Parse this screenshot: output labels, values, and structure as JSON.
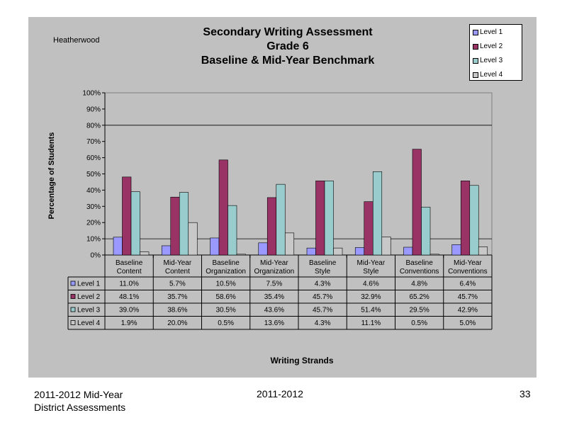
{
  "page": {
    "school": "Heatherwood",
    "title_lines": [
      "Secondary Writing Assessment",
      "Grade 6",
      "Baseline & Mid-Year Benchmark"
    ],
    "footer_left_line1": "2011-2012  Mid-Year",
    "footer_left_line2": "District Assessments",
    "footer_center": "2011-2012",
    "page_number": "33"
  },
  "chart_data": {
    "type": "bar",
    "ylabel": "Percentage of Students",
    "xlabel": "Writing Strands",
    "ylim": [
      0,
      100
    ],
    "yticks": [
      "0%",
      "10%",
      "20%",
      "30%",
      "40%",
      "50%",
      "60%",
      "70%",
      "80%",
      "90%",
      "100%"
    ],
    "categories": [
      [
        "Baseline",
        "Content"
      ],
      [
        "Mid-Year",
        "Content"
      ],
      [
        "Baseline",
        "Organization"
      ],
      [
        "Mid-Year",
        "Organization"
      ],
      [
        "Baseline",
        "Style"
      ],
      [
        "Mid-Year",
        "Style"
      ],
      [
        "Baseline",
        "Conventions"
      ],
      [
        "Mid-Year",
        "Conventions"
      ]
    ],
    "series": [
      {
        "name": "Level 1",
        "color": "#9999ff",
        "values": [
          11.0,
          5.7,
          10.5,
          7.5,
          4.3,
          4.6,
          4.8,
          6.4
        ],
        "labels": [
          "11.0%",
          "5.7%",
          "10.5%",
          "7.5%",
          "4.3%",
          "4.6%",
          "4.8%",
          "6.4%"
        ]
      },
      {
        "name": "Level 2",
        "color": "#993366",
        "values": [
          48.1,
          35.7,
          58.6,
          35.4,
          45.7,
          32.9,
          65.2,
          45.7
        ],
        "labels": [
          "48.1%",
          "35.7%",
          "58.6%",
          "35.4%",
          "45.7%",
          "32.9%",
          "65.2%",
          "45.7%"
        ]
      },
      {
        "name": "Level 3",
        "color": "#99cccc",
        "values": [
          39.0,
          38.6,
          30.5,
          43.6,
          45.7,
          51.4,
          29.5,
          42.9
        ],
        "labels": [
          "39.0%",
          "38.6%",
          "30.5%",
          "43.6%",
          "45.7%",
          "51.4%",
          "29.5%",
          "42.9%"
        ]
      },
      {
        "name": "Level 4",
        "color": "#c8c8c8",
        "values": [
          1.9,
          20.0,
          0.5,
          13.6,
          4.3,
          11.1,
          0.5,
          5.0
        ],
        "labels": [
          "1.9%",
          "20.0%",
          "0.5%",
          "13.6%",
          "4.3%",
          "11.1%",
          "0.5%",
          "5.0%"
        ]
      }
    ],
    "gridlines": [
      10,
      80
    ],
    "legend": "top-right"
  }
}
